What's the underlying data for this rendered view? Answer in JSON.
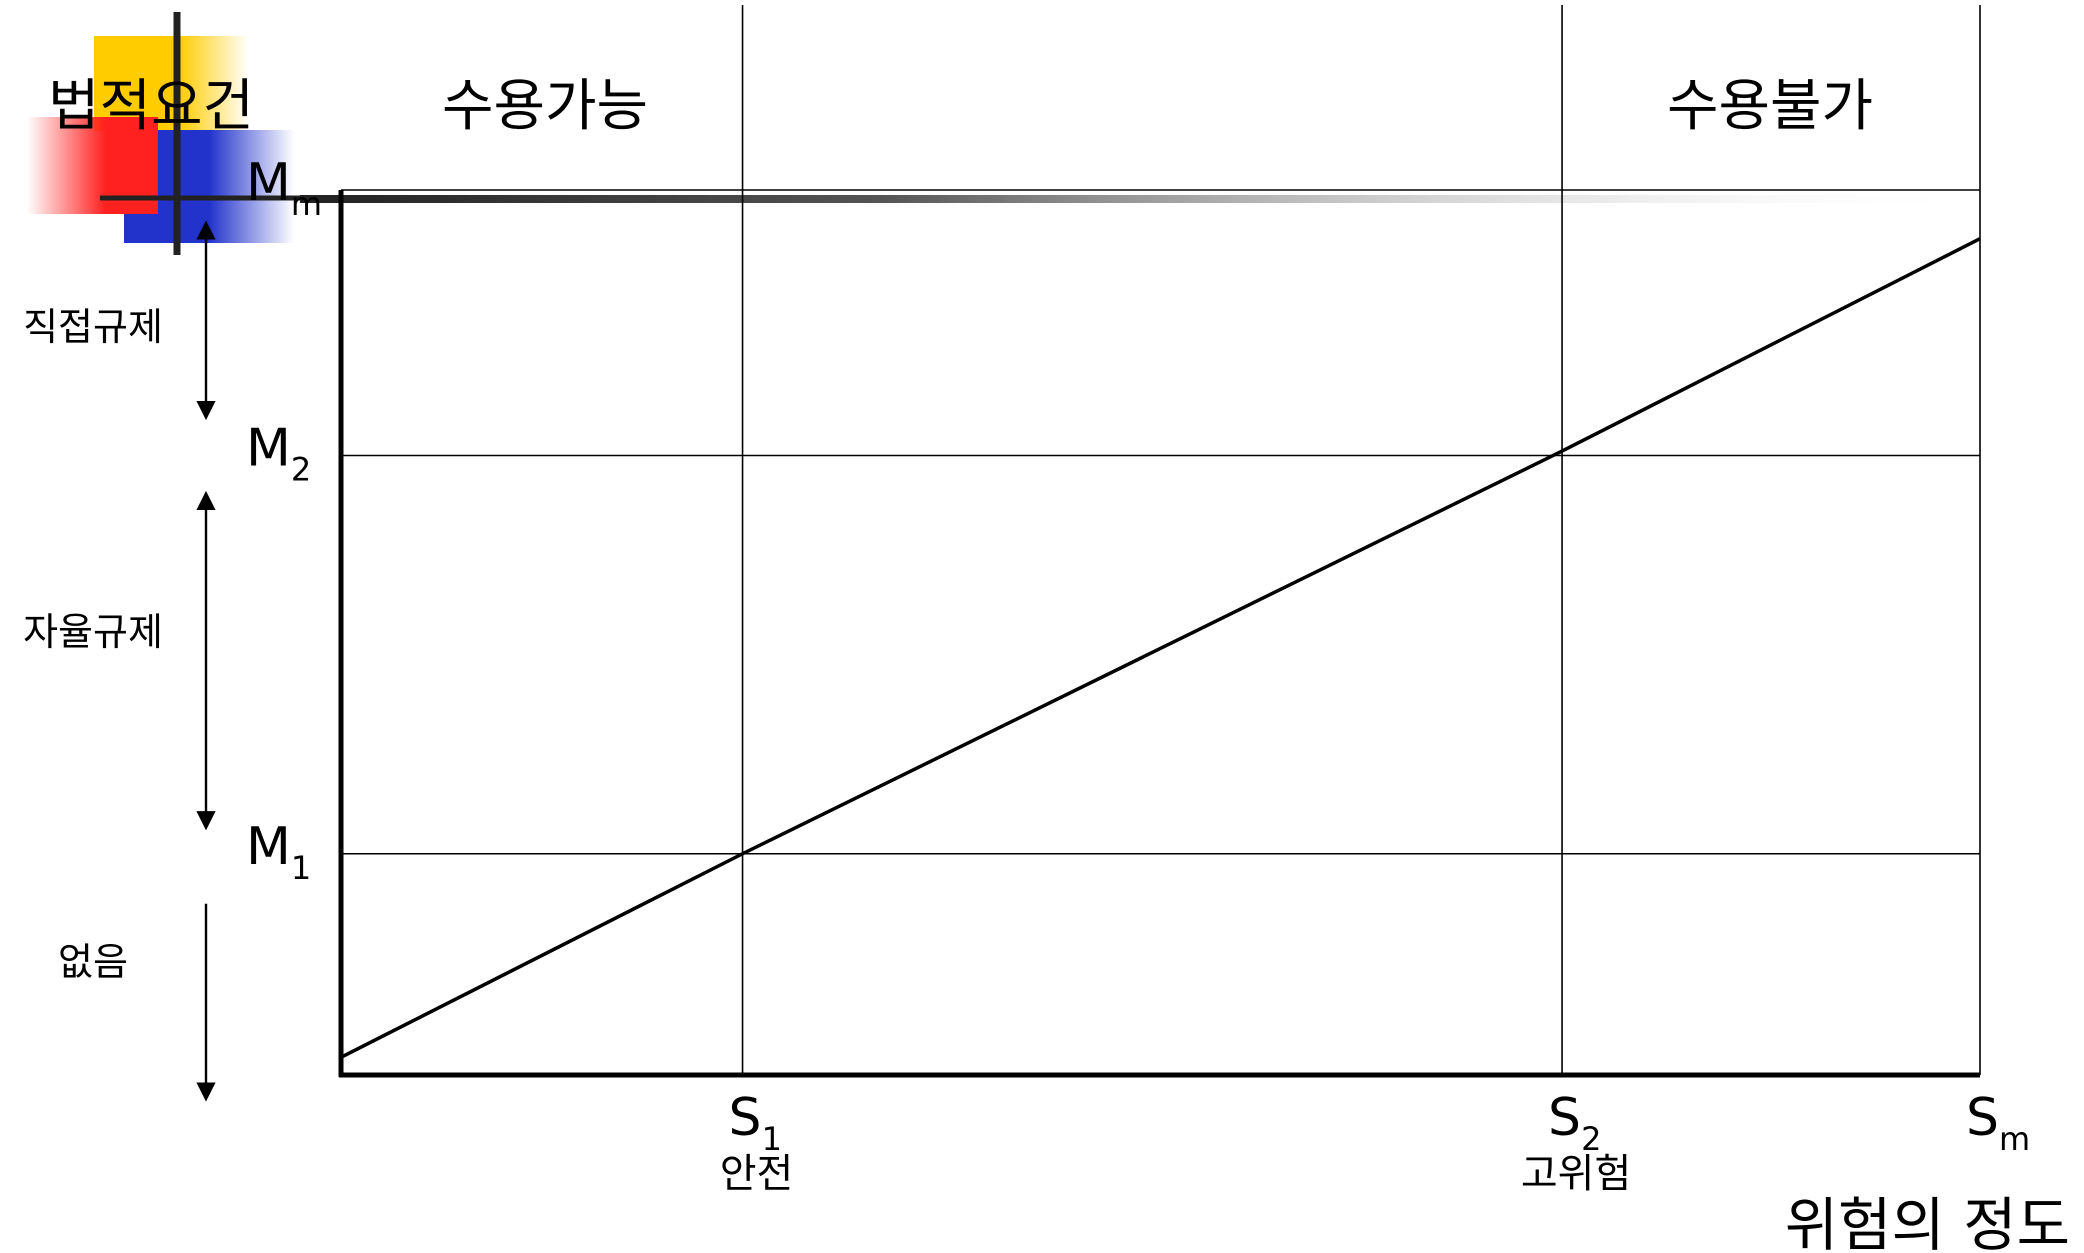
{
  "title": "법적요건",
  "zones": [
    {
      "label": "수용가능"
    },
    {
      "label": "수용불가"
    }
  ],
  "y_levels": [
    {
      "base": "M",
      "sub": "m",
      "value": 1.0
    },
    {
      "base": "M",
      "sub": "2",
      "value": 0.7
    },
    {
      "base": "M",
      "sub": "1",
      "value": 0.25
    }
  ],
  "x_levels": [
    {
      "base": "S",
      "sub": "1",
      "desc": "안전",
      "value": 0.245
    },
    {
      "base": "S",
      "sub": "2",
      "desc": "고위험",
      "value": 0.745
    },
    {
      "base": "S",
      "sub": "m",
      "desc": "",
      "value": 1.0
    }
  ],
  "regulation_bands": [
    {
      "label": "직접규제",
      "from": "M2",
      "to": "Mm"
    },
    {
      "label": "자율규제",
      "from": "M1",
      "to": "M2"
    },
    {
      "label": "없음",
      "from": "0",
      "to": "M1"
    }
  ],
  "xlabel": "위험의 정도",
  "chart_data": {
    "type": "line",
    "title": "법적요건",
    "xlabel": "위험의 정도",
    "ylabel": "",
    "x_ticks": [
      "S1",
      "S2",
      "Sm"
    ],
    "y_ticks": [
      "M1",
      "M2",
      "Mm"
    ],
    "xlim": [
      0,
      1
    ],
    "ylim": [
      0,
      1
    ],
    "series": [
      {
        "x": [
          0,
          0.245,
          0.745,
          1.0
        ],
        "y": [
          0.02,
          0.25,
          0.705,
          0.945
        ]
      }
    ],
    "grid": true
  },
  "colors": {
    "line": "#000000",
    "grid": "#000000",
    "deco_yellow": "#ffcc00",
    "deco_red": "#ff2020",
    "deco_blue": "#2233cc"
  }
}
